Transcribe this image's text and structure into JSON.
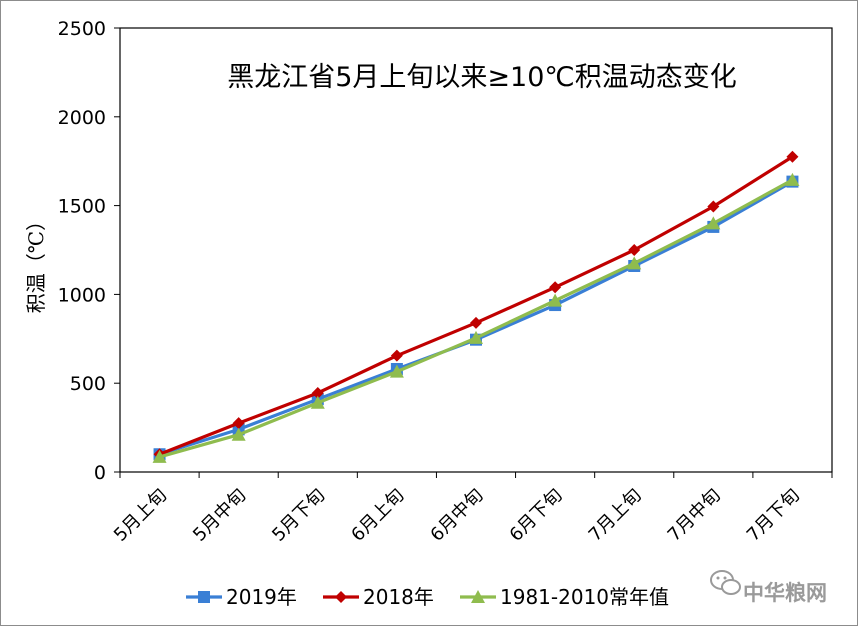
{
  "chart_data": {
    "type": "line",
    "title": "黑龙江省5月上旬以来≥10℃积温动态变化",
    "ylabel": "积温（℃）",
    "xlabel": "",
    "ylim": [
      0,
      2500
    ],
    "yticks": [
      "0",
      "500",
      "1000",
      "1500",
      "2000",
      "2500"
    ],
    "categories": [
      "5月上旬",
      "5月中旬",
      "5月下旬",
      "6月上旬",
      "6月中旬",
      "6月下旬",
      "7月上旬",
      "7月中旬",
      "7月下旬"
    ],
    "series": [
      {
        "name": "2019年",
        "color": "#3a7fd5",
        "marker": "square",
        "values": [
          100,
          240,
          410,
          580,
          745,
          940,
          1160,
          1380,
          1635
        ]
      },
      {
        "name": "2018年",
        "color": "#c00000",
        "marker": "diamond",
        "values": [
          100,
          275,
          445,
          655,
          840,
          1040,
          1250,
          1495,
          1775
        ]
      },
      {
        "name": "1981-2010常年值",
        "color": "#8fbc4e",
        "marker": "triangle",
        "values": [
          85,
          210,
          390,
          565,
          755,
          965,
          1175,
          1400,
          1645
        ]
      }
    ],
    "grid": false,
    "legend_position": "bottom"
  },
  "watermark": {
    "text": "中华粮网",
    "icon": "wechat-icon"
  }
}
